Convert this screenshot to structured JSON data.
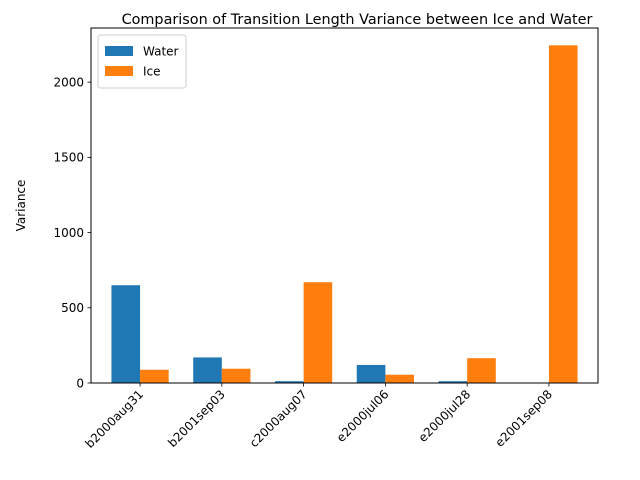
{
  "chart_data": {
    "type": "bar",
    "title": "Comparison of Transition Length Variance between Ice and Water",
    "xlabel": "",
    "ylabel": "Variance",
    "categories": [
      "b2000aug31",
      "b2001sep03",
      "c2000aug07",
      "e2000jul06",
      "e2000jul28",
      "e2001sep08"
    ],
    "series": [
      {
        "name": "Water",
        "color": "#1f77b4",
        "values": [
          650,
          170,
          12,
          120,
          12,
          0
        ]
      },
      {
        "name": "Ice",
        "color": "#ff7f0e",
        "values": [
          88,
          95,
          670,
          55,
          165,
          2245
        ]
      }
    ],
    "ylim": [
      0,
      2360
    ],
    "yticks": [
      0,
      500,
      1000,
      1500,
      2000
    ],
    "legend_position": "top-left",
    "grid": false,
    "xtick_rotation": 45
  }
}
